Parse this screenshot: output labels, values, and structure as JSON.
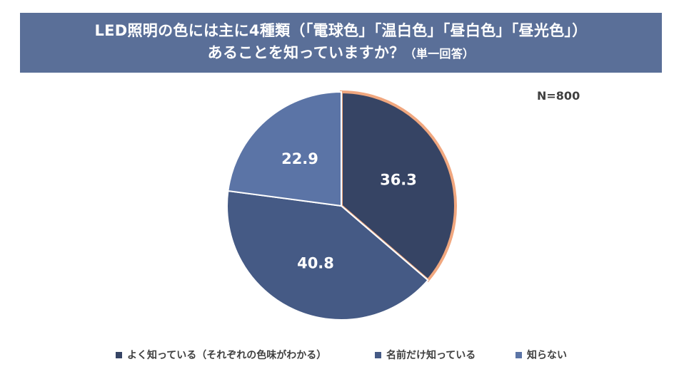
{
  "title": {
    "line1": "LED照明の色には主に4種類（「電球色」「温白色」「昼白色」「昼光色」）",
    "line2_main": "あることを知っていますか？",
    "line2_sub": "（単一回答）"
  },
  "sample_size": "N=800",
  "colors": {
    "banner": "#5a6f98",
    "highlight_outline": "#f0a77f"
  },
  "chart_data": {
    "type": "pie",
    "title": "LED照明の色には主に4種類（「電球色」「温白色」「昼白色」「昼光色」）あることを知っていますか？（単一回答）",
    "unit": "%",
    "start_angle_deg": 0,
    "direction": "clockwise",
    "legend_position": "bottom",
    "slices": [
      {
        "label": "よく知っている（それぞれの色味がわかる）",
        "value": 36.3,
        "display": "36.3",
        "color": "#364464",
        "highlighted": true
      },
      {
        "label": "名前だけ知っている",
        "value": 40.8,
        "display": "40.8",
        "color": "#455a85"
      },
      {
        "label": "知らない",
        "value": 22.9,
        "display": "22.9",
        "color": "#5b74a6"
      }
    ]
  }
}
